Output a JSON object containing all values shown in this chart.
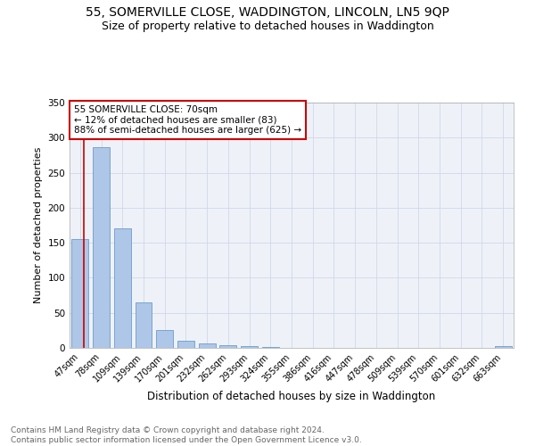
{
  "title": "55, SOMERVILLE CLOSE, WADDINGTON, LINCOLN, LN5 9QP",
  "subtitle": "Size of property relative to detached houses in Waddington",
  "xlabel": "Distribution of detached houses by size in Waddington",
  "ylabel": "Number of detached properties",
  "categories": [
    "47sqm",
    "78sqm",
    "109sqm",
    "139sqm",
    "170sqm",
    "201sqm",
    "232sqm",
    "262sqm",
    "293sqm",
    "324sqm",
    "355sqm",
    "386sqm",
    "416sqm",
    "447sqm",
    "478sqm",
    "509sqm",
    "539sqm",
    "570sqm",
    "601sqm",
    "632sqm",
    "663sqm"
  ],
  "values": [
    155,
    287,
    170,
    65,
    25,
    10,
    7,
    4,
    2,
    1,
    0,
    0,
    0,
    0,
    0,
    0,
    0,
    0,
    0,
    0,
    2
  ],
  "bar_color": "#aec6e8",
  "bar_edge_color": "#5a8fc2",
  "property_line_color": "#cc0000",
  "annotation_line1": "55 SOMERVILLE CLOSE: 70sqm",
  "annotation_line2": "← 12% of detached houses are smaller (83)",
  "annotation_line3": "88% of semi-detached houses are larger (625) →",
  "annotation_box_color": "#cc0000",
  "ylim": [
    0,
    350
  ],
  "yticks": [
    0,
    50,
    100,
    150,
    200,
    250,
    300,
    350
  ],
  "grid_color": "#d0d8e8",
  "bg_color": "#eef2f8",
  "footer_text": "Contains HM Land Registry data © Crown copyright and database right 2024.\nContains public sector information licensed under the Open Government Licence v3.0.",
  "title_fontsize": 10,
  "subtitle_fontsize": 9,
  "annotation_fontsize": 7.5,
  "footer_fontsize": 6.5,
  "ylabel_fontsize": 8,
  "xlabel_fontsize": 8.5
}
